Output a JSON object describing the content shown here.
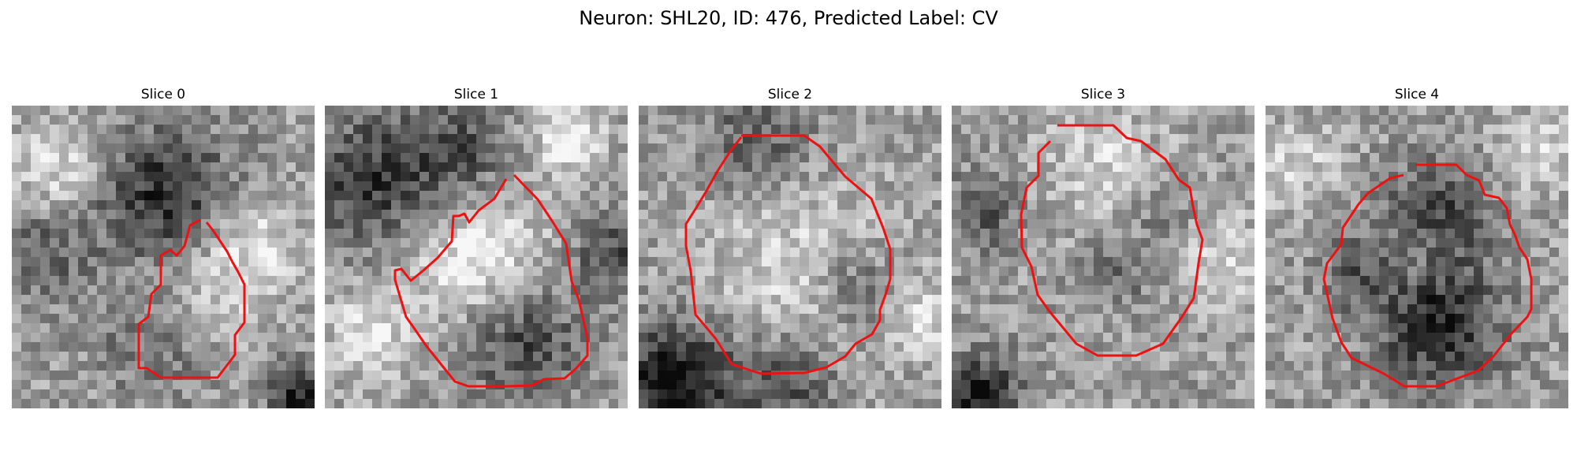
{
  "figure": {
    "title": "Neuron: SHL20, ID: 476, Predicted Label: CV",
    "contour_color": "#ee1111",
    "colormap": "gray"
  },
  "panels": [
    {
      "title": "Slice 0",
      "noise_seed": 11,
      "dark_blobs": [
        [
          0.5,
          0.3,
          0.22,
          0.45
        ],
        [
          0.5,
          0.75,
          0.2,
          0.3
        ],
        [
          0.95,
          0.95,
          0.1,
          0.5
        ],
        [
          0.1,
          0.5,
          0.15,
          0.25
        ]
      ],
      "light_blobs": [
        [
          0.6,
          0.65,
          0.2,
          0.3
        ],
        [
          0.15,
          0.2,
          0.15,
          0.25
        ],
        [
          0.8,
          0.45,
          0.15,
          0.25
        ]
      ]
    },
    {
      "title": "Slice 1",
      "noise_seed": 23,
      "dark_blobs": [
        [
          0.15,
          0.25,
          0.22,
          0.4
        ],
        [
          0.65,
          0.78,
          0.2,
          0.35
        ],
        [
          0.95,
          0.5,
          0.12,
          0.35
        ],
        [
          0.45,
          0.15,
          0.18,
          0.3
        ]
      ],
      "light_blobs": [
        [
          0.5,
          0.5,
          0.22,
          0.35
        ],
        [
          0.8,
          0.1,
          0.12,
          0.35
        ],
        [
          0.15,
          0.75,
          0.15,
          0.25
        ]
      ]
    },
    {
      "title": "Slice 2",
      "noise_seed": 37,
      "dark_blobs": [
        [
          0.12,
          0.92,
          0.2,
          0.6
        ],
        [
          0.5,
          0.92,
          0.15,
          0.3
        ],
        [
          0.72,
          0.6,
          0.12,
          0.25
        ],
        [
          0.4,
          0.12,
          0.2,
          0.25
        ]
      ],
      "light_blobs": [
        [
          0.5,
          0.5,
          0.3,
          0.2
        ],
        [
          0.95,
          0.7,
          0.12,
          0.25
        ]
      ]
    },
    {
      "title": "Slice 3",
      "noise_seed": 51,
      "dark_blobs": [
        [
          0.1,
          0.95,
          0.12,
          0.55
        ],
        [
          0.1,
          0.35,
          0.12,
          0.3
        ],
        [
          0.55,
          0.55,
          0.12,
          0.2
        ],
        [
          0.7,
          0.35,
          0.1,
          0.2
        ]
      ],
      "light_blobs": [
        [
          0.5,
          0.2,
          0.2,
          0.2
        ],
        [
          0.9,
          0.5,
          0.15,
          0.2
        ]
      ]
    },
    {
      "title": "Slice 4",
      "noise_seed": 67,
      "dark_blobs": [
        [
          0.57,
          0.72,
          0.2,
          0.5
        ],
        [
          0.57,
          0.35,
          0.18,
          0.35
        ],
        [
          0.3,
          0.55,
          0.12,
          0.25
        ]
      ],
      "light_blobs": [
        [
          0.1,
          0.2,
          0.15,
          0.2
        ],
        [
          0.9,
          0.15,
          0.15,
          0.2
        ],
        [
          0.5,
          0.5,
          0.12,
          0.15
        ]
      ]
    }
  ]
}
